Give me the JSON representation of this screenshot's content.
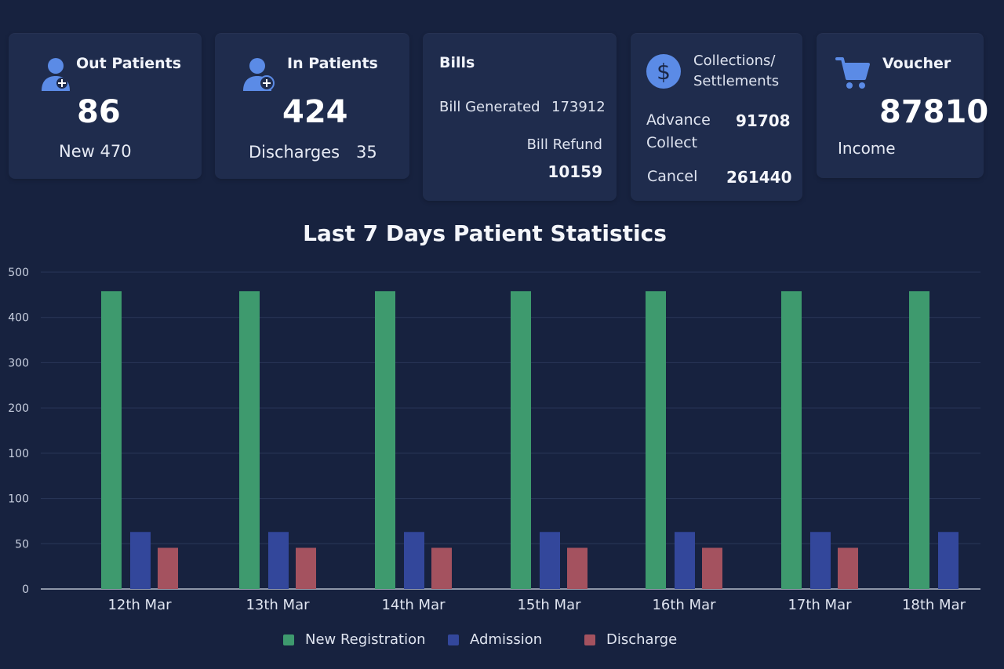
{
  "cards": {
    "out_patients": {
      "title": "Out Patients",
      "value": "86",
      "sub": "New 470",
      "icon": "user-plus-icon"
    },
    "in_patients": {
      "title": "In Patients",
      "value": "424",
      "sub_label": "Discharges",
      "sub_value": "35",
      "icon": "user-add-icon"
    },
    "bills": {
      "title": "Bills",
      "generated_label": "Bill Generated",
      "generated_value": "173912",
      "refund_label": "Bill Refund",
      "refund_value": "10159"
    },
    "collections": {
      "title_line1": "Collections/",
      "title_line2": "Settlements",
      "advance_line1": "Advance",
      "advance_line2": "Collect",
      "advance_value": "91708",
      "cancel_label": "Cancel",
      "cancel_value": "261440",
      "icon": "dollar-icon"
    },
    "voucher": {
      "title": "Voucher",
      "value": "87810",
      "sub": "Income",
      "icon": "cart-icon"
    }
  },
  "chart_data": {
    "type": "bar",
    "title": "Last 7 Days Patient Statistics",
    "xlabel": "",
    "ylabel": "",
    "y_tick_labels": [
      "0",
      "50",
      "100",
      "100",
      "200",
      "300",
      "400",
      "500"
    ],
    "ylim": [
      0,
      500
    ],
    "grid": true,
    "legend_position": "bottom-center",
    "categories": [
      "12th Mar",
      "13th Mar",
      "14th Mar",
      "15th Mar",
      "16th Mar",
      "17th Mar",
      "18th Mar"
    ],
    "series": [
      {
        "name": "New Registration",
        "color": "#3e9a6e",
        "values": [
          470,
          470,
          470,
          470,
          470,
          470,
          470
        ]
      },
      {
        "name": "Admission",
        "color": "#33479b",
        "values": [
          90,
          90,
          90,
          90,
          90,
          90,
          90
        ]
      },
      {
        "name": "Discharge",
        "color": "#a4525f",
        "values": [
          65,
          65,
          65,
          65,
          65,
          65,
          null
        ]
      }
    ]
  },
  "colors": {
    "background": "#17223f",
    "card": "#1f2c4d",
    "icon_accent": "#5b8be6"
  }
}
